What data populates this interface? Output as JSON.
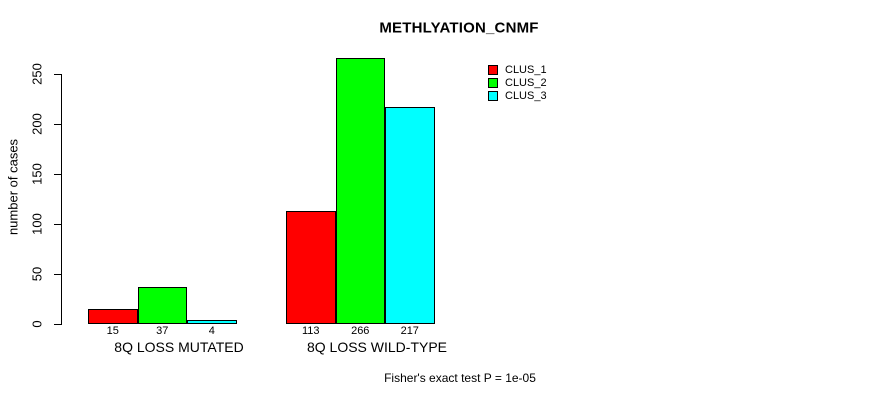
{
  "chart": {
    "title": "METHLYATION_CNMF",
    "annotation": "Fisher's exact test P = 1e-05"
  },
  "chart_data": {
    "type": "bar",
    "title": "METHLYATION_CNMF",
    "xlabel": "",
    "ylabel": "number of cases",
    "categories": [
      "8Q LOSS MUTATED",
      "8Q LOSS WILD-TYPE"
    ],
    "series": [
      {
        "name": "CLUS_1",
        "color": "#ff0000",
        "values": [
          15,
          113
        ]
      },
      {
        "name": "CLUS_2",
        "color": "#00ff00",
        "values": [
          37,
          266
        ]
      },
      {
        "name": "CLUS_3",
        "color": "#00ffff",
        "values": [
          4,
          217
        ]
      }
    ],
    "yticks": [
      0,
      50,
      100,
      150,
      200,
      250
    ],
    "ylim": [
      0,
      250
    ],
    "grid": false,
    "bar_border_color": "#000000",
    "bar_value_labels_shown": true,
    "legend_position": "top-right",
    "annotation": "Fisher's exact test P = 1e-05"
  }
}
